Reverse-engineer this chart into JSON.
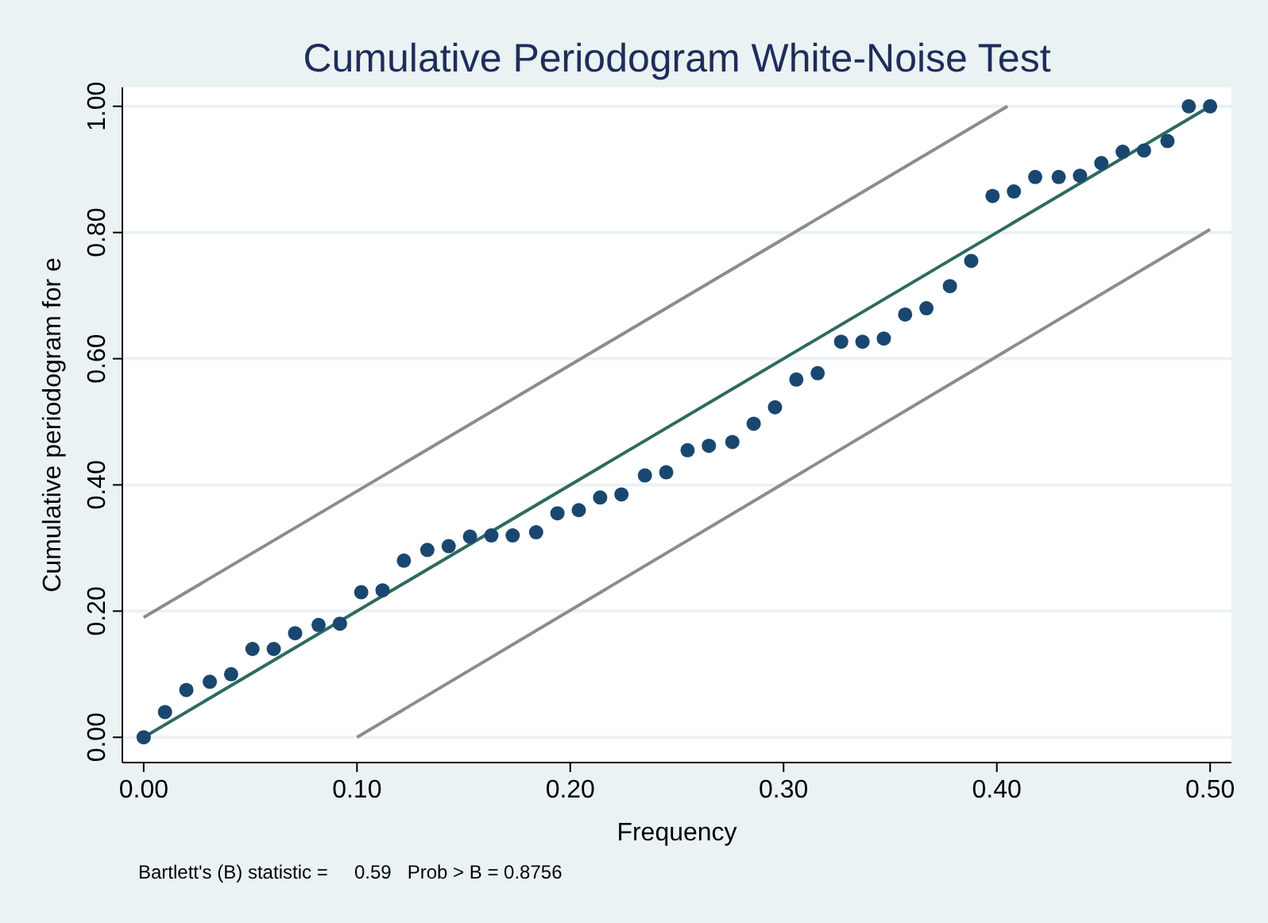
{
  "chart_data": {
    "type": "scatter",
    "title": "Cumulative Periodogram White-Noise Test",
    "xlabel": "Frequency",
    "ylabel": "Cumulative periodogram for e",
    "annotations": [
      "Bartlett's (B) statistic =     0.59   Prob > B = 0.8756"
    ],
    "xlim": [
      -0.01,
      0.51
    ],
    "ylim": [
      -0.04,
      1.03
    ],
    "xticks": [
      {
        "value": 0,
        "label": "0.00"
      },
      {
        "value": 0.1,
        "label": "0.10"
      },
      {
        "value": 0.2,
        "label": "0.20"
      },
      {
        "value": 0.3,
        "label": "0.30"
      },
      {
        "value": 0.4,
        "label": "0.40"
      },
      {
        "value": 0.5,
        "label": "0.50"
      }
    ],
    "yticks": [
      {
        "value": 0,
        "label": "0.00"
      },
      {
        "value": 0.2,
        "label": "0.20"
      },
      {
        "value": 0.4,
        "label": "0.40"
      },
      {
        "value": 0.6,
        "label": "0.60"
      },
      {
        "value": 0.8,
        "label": "0.80"
      },
      {
        "value": 1,
        "label": "1.00"
      }
    ],
    "grid": "y",
    "line_style": "solid",
    "series": [
      {
        "type": "line",
        "marker": "none",
        "color": "#8c8c8c",
        "x": [
          0,
          0.405
        ],
        "values": [
          0.19,
          1.0
        ]
      },
      {
        "type": "line",
        "marker": "none",
        "color": "#8c8c8c",
        "x": [
          0.1,
          0.5
        ],
        "values": [
          0,
          0.805
        ]
      },
      {
        "type": "line",
        "marker": "none",
        "color": "#2d6a5f",
        "x": [
          0,
          0.5
        ],
        "values": [
          0,
          1.0
        ]
      },
      {
        "marker": "circle",
        "color": "#1a476f",
        "x": [
          0,
          0.01,
          0.02,
          0.031,
          0.041,
          0.051,
          0.061,
          0.071,
          0.082,
          0.092,
          0.102,
          0.112,
          0.122,
          0.133,
          0.143,
          0.153,
          0.163,
          0.173,
          0.184,
          0.194,
          0.204,
          0.214,
          0.224,
          0.235,
          0.245,
          0.255,
          0.265,
          0.276,
          0.286,
          0.296,
          0.306,
          0.316,
          0.327,
          0.337,
          0.347,
          0.357,
          0.367,
          0.378,
          0.388,
          0.398,
          0.408,
          0.418,
          0.429,
          0.439,
          0.449,
          0.459,
          0.469,
          0.48,
          0.49,
          0.5
        ],
        "values": [
          0,
          0.04,
          0.075,
          0.088,
          0.1,
          0.14,
          0.14,
          0.165,
          0.178,
          0.18,
          0.23,
          0.233,
          0.28,
          0.297,
          0.303,
          0.318,
          0.32,
          0.32,
          0.325,
          0.355,
          0.36,
          0.38,
          0.385,
          0.415,
          0.42,
          0.455,
          0.462,
          0.468,
          0.497,
          0.523,
          0.567,
          0.577,
          0.627,
          0.627,
          0.632,
          0.67,
          0.68,
          0.715,
          0.755,
          0.858,
          0.865,
          0.888,
          0.888,
          0.89,
          0.91,
          0.928,
          0.93,
          0.945,
          1.0,
          1.0
        ]
      }
    ]
  }
}
